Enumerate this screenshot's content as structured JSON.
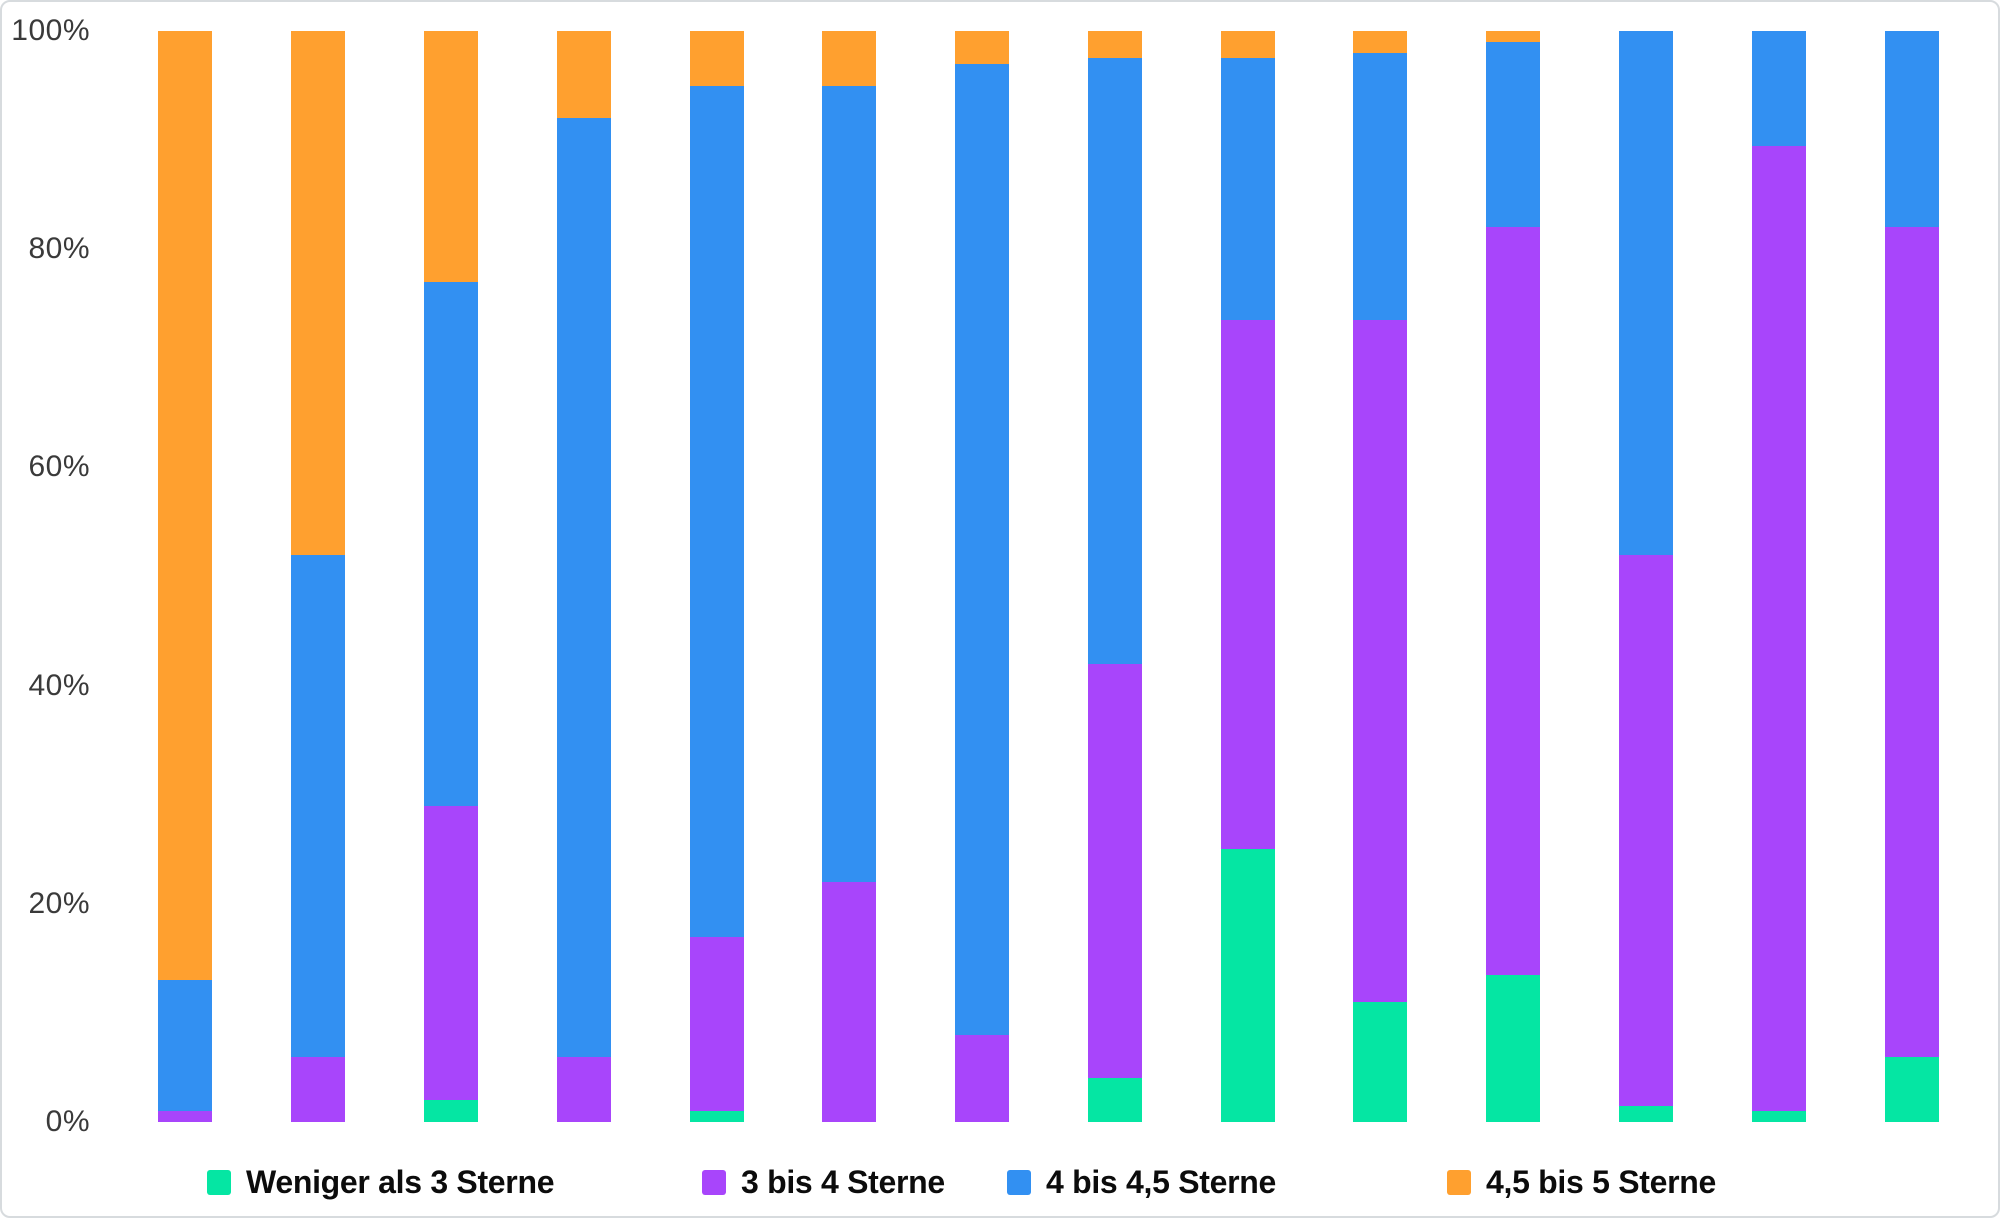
{
  "chart_data": {
    "type": "bar",
    "stacked": true,
    "percent_stacked": true,
    "title": "",
    "bar_count": 14,
    "categories": [
      "",
      "",
      "",
      "",
      "",
      "",
      "",
      "",
      "",
      "",
      "",
      "",
      "",
      ""
    ],
    "x_axis": {
      "labels_visible": false
    },
    "y_axis": {
      "min": 0,
      "max": 100,
      "unit": "%",
      "grid": false,
      "ticks": [
        "100%",
        "80%",
        "60%",
        "40%",
        "20%",
        "0%"
      ]
    },
    "legend": {
      "position": "bottom"
    },
    "series": [
      {
        "name": "Weniger als 3 Sterne",
        "color": "#05E6A3",
        "values": [
          0,
          0,
          2,
          0,
          1,
          0,
          0,
          4,
          25,
          11,
          13.5,
          1.5,
          1,
          6
        ]
      },
      {
        "name": "3 bis 4 Sterne",
        "color": "#A845FB",
        "values": [
          1,
          6,
          27,
          6,
          16,
          22,
          8,
          38,
          48.5,
          62.5,
          68.5,
          50.5,
          88.5,
          76
        ]
      },
      {
        "name": "4 bis 4,5 Sterne",
        "color": "#3290F2",
        "values": [
          12,
          46,
          48,
          86,
          78,
          73,
          89,
          55.5,
          24,
          24.5,
          17,
          48,
          10.5,
          18
        ]
      },
      {
        "name": "4,5 bis 5 Sterne",
        "color": "#FFA02F",
        "values": [
          87,
          48,
          23,
          8,
          5,
          5,
          3,
          2.5,
          2.5,
          2,
          1,
          0,
          0,
          0
        ]
      }
    ]
  }
}
